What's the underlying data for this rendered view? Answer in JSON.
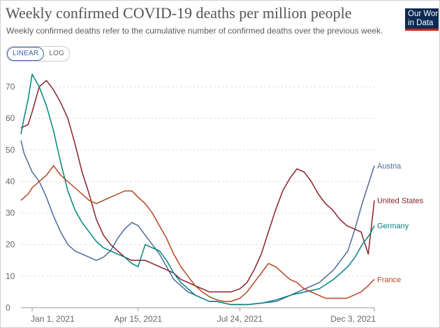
{
  "header": {
    "title": "Weekly confirmed COVID-19 deaths per million people",
    "subtitle": "Weekly confirmed deaths refer to the cumulative number of confirmed deaths over the previous week.",
    "logo_line1": "Our World",
    "logo_line2": "in Data"
  },
  "controls": {
    "linear_label": "LINEAR",
    "log_label": "LOG"
  },
  "colors": {
    "Austria": "#4c6a9c",
    "United States": "#8a2128",
    "Germany": "#00847e",
    "France": "#b5441e"
  },
  "chart_data": {
    "type": "line",
    "title": "Weekly confirmed COVID-19 deaths per million people",
    "xlabel": "",
    "ylabel": "",
    "x_range": [
      "Dec 21, 2020",
      "Dec 3, 2021"
    ],
    "ylim": [
      0,
      78
    ],
    "yticks": [
      0,
      10,
      20,
      30,
      40,
      50,
      60,
      70
    ],
    "xticks": [
      {
        "label": "Jan 1, 2021",
        "date": "2021-01-01"
      },
      {
        "label": "Apr 15, 2021",
        "date": "2021-04-15"
      },
      {
        "label": "Jul 24, 2021",
        "date": "2021-07-24"
      },
      {
        "label": "Dec 3, 2021",
        "date": "2021-12-03"
      }
    ],
    "grid": true,
    "series": [
      {
        "name": "Austria",
        "points": [
          [
            "2020-12-21",
            53
          ],
          [
            "2020-12-24",
            49
          ],
          [
            "2020-12-28",
            46
          ],
          [
            "2021-01-01",
            43
          ],
          [
            "2021-01-08",
            40
          ],
          [
            "2021-01-15",
            35
          ],
          [
            "2021-01-22",
            29
          ],
          [
            "2021-01-29",
            24
          ],
          [
            "2021-02-05",
            20
          ],
          [
            "2021-02-12",
            18
          ],
          [
            "2021-02-19",
            17
          ],
          [
            "2021-02-26",
            16
          ],
          [
            "2021-03-05",
            15
          ],
          [
            "2021-03-12",
            16
          ],
          [
            "2021-03-19",
            18
          ],
          [
            "2021-03-26",
            22
          ],
          [
            "2021-04-02",
            25
          ],
          [
            "2021-04-09",
            27
          ],
          [
            "2021-04-15",
            26
          ],
          [
            "2021-04-22",
            23
          ],
          [
            "2021-04-29",
            20
          ],
          [
            "2021-05-06",
            17
          ],
          [
            "2021-05-13",
            13
          ],
          [
            "2021-05-20",
            9
          ],
          [
            "2021-05-27",
            7
          ],
          [
            "2021-06-03",
            5
          ],
          [
            "2021-06-10",
            4
          ],
          [
            "2021-06-17",
            3
          ],
          [
            "2021-06-24",
            2
          ],
          [
            "2021-07-01",
            2
          ],
          [
            "2021-07-08",
            1.5
          ],
          [
            "2021-07-15",
            1
          ],
          [
            "2021-07-24",
            1
          ],
          [
            "2021-08-01",
            1
          ],
          [
            "2021-08-15",
            1.5
          ],
          [
            "2021-08-29",
            2
          ],
          [
            "2021-09-12",
            4
          ],
          [
            "2021-09-26",
            6
          ],
          [
            "2021-10-10",
            8
          ],
          [
            "2021-10-24",
            12
          ],
          [
            "2021-11-07",
            18
          ],
          [
            "2021-11-14",
            25
          ],
          [
            "2021-11-21",
            33
          ],
          [
            "2021-11-28",
            40
          ],
          [
            "2021-12-03",
            45
          ]
        ]
      },
      {
        "name": "United States",
        "points": [
          [
            "2020-12-21",
            57
          ],
          [
            "2020-12-28",
            58
          ],
          [
            "2021-01-01",
            62
          ],
          [
            "2021-01-08",
            70
          ],
          [
            "2021-01-15",
            72
          ],
          [
            "2021-01-22",
            69
          ],
          [
            "2021-01-29",
            65
          ],
          [
            "2021-02-05",
            60
          ],
          [
            "2021-02-12",
            52
          ],
          [
            "2021-02-19",
            43
          ],
          [
            "2021-02-26",
            36
          ],
          [
            "2021-03-05",
            28
          ],
          [
            "2021-03-12",
            23
          ],
          [
            "2021-03-19",
            20
          ],
          [
            "2021-03-26",
            18
          ],
          [
            "2021-04-02",
            16
          ],
          [
            "2021-04-09",
            15
          ],
          [
            "2021-04-15",
            15
          ],
          [
            "2021-04-22",
            15
          ],
          [
            "2021-04-29",
            14
          ],
          [
            "2021-05-06",
            13
          ],
          [
            "2021-05-13",
            12
          ],
          [
            "2021-05-20",
            11
          ],
          [
            "2021-05-27",
            9
          ],
          [
            "2021-06-03",
            8
          ],
          [
            "2021-06-10",
            7
          ],
          [
            "2021-06-17",
            6
          ],
          [
            "2021-06-24",
            5
          ],
          [
            "2021-07-01",
            5
          ],
          [
            "2021-07-08",
            5
          ],
          [
            "2021-07-15",
            5
          ],
          [
            "2021-07-24",
            6
          ],
          [
            "2021-07-31",
            8
          ],
          [
            "2021-08-07",
            12
          ],
          [
            "2021-08-14",
            17
          ],
          [
            "2021-08-21",
            24
          ],
          [
            "2021-08-28",
            31
          ],
          [
            "2021-09-04",
            37
          ],
          [
            "2021-09-11",
            41
          ],
          [
            "2021-09-18",
            44
          ],
          [
            "2021-09-25",
            43
          ],
          [
            "2021-10-02",
            40
          ],
          [
            "2021-10-09",
            36
          ],
          [
            "2021-10-16",
            33
          ],
          [
            "2021-10-23",
            31
          ],
          [
            "2021-10-30",
            28
          ],
          [
            "2021-11-06",
            26
          ],
          [
            "2021-11-13",
            25
          ],
          [
            "2021-11-20",
            24
          ],
          [
            "2021-11-27",
            17
          ],
          [
            "2021-12-03",
            34
          ]
        ]
      },
      {
        "name": "Germany",
        "points": [
          [
            "2020-12-21",
            55
          ],
          [
            "2020-12-24",
            60
          ],
          [
            "2020-12-28",
            66
          ],
          [
            "2021-01-01",
            74
          ],
          [
            "2021-01-08",
            70
          ],
          [
            "2021-01-15",
            64
          ],
          [
            "2021-01-22",
            56
          ],
          [
            "2021-01-29",
            46
          ],
          [
            "2021-02-05",
            37
          ],
          [
            "2021-02-12",
            31
          ],
          [
            "2021-02-19",
            27
          ],
          [
            "2021-02-26",
            24
          ],
          [
            "2021-03-05",
            21
          ],
          [
            "2021-03-12",
            19
          ],
          [
            "2021-03-19",
            18
          ],
          [
            "2021-03-26",
            17
          ],
          [
            "2021-04-02",
            16
          ],
          [
            "2021-04-09",
            14
          ],
          [
            "2021-04-15",
            13
          ],
          [
            "2021-04-22",
            20
          ],
          [
            "2021-04-29",
            19
          ],
          [
            "2021-05-06",
            18
          ],
          [
            "2021-05-13",
            15
          ],
          [
            "2021-05-20",
            11
          ],
          [
            "2021-05-27",
            8
          ],
          [
            "2021-06-03",
            6
          ],
          [
            "2021-06-10",
            4
          ],
          [
            "2021-06-17",
            3
          ],
          [
            "2021-06-24",
            2
          ],
          [
            "2021-07-01",
            2
          ],
          [
            "2021-07-08",
            1.5
          ],
          [
            "2021-07-15",
            1
          ],
          [
            "2021-07-24",
            1
          ],
          [
            "2021-08-01",
            1
          ],
          [
            "2021-08-15",
            1.5
          ],
          [
            "2021-08-29",
            2.5
          ],
          [
            "2021-09-12",
            4
          ],
          [
            "2021-09-26",
            5
          ],
          [
            "2021-10-10",
            6
          ],
          [
            "2021-10-24",
            9
          ],
          [
            "2021-11-07",
            13
          ],
          [
            "2021-11-14",
            16
          ],
          [
            "2021-11-21",
            20
          ],
          [
            "2021-11-28",
            23
          ],
          [
            "2021-12-03",
            26
          ]
        ]
      },
      {
        "name": "France",
        "points": [
          [
            "2020-12-21",
            34
          ],
          [
            "2020-12-28",
            36
          ],
          [
            "2021-01-01",
            38
          ],
          [
            "2021-01-08",
            40
          ],
          [
            "2021-01-15",
            42
          ],
          [
            "2021-01-22",
            45
          ],
          [
            "2021-01-29",
            42
          ],
          [
            "2021-02-05",
            40
          ],
          [
            "2021-02-12",
            38
          ],
          [
            "2021-02-19",
            36
          ],
          [
            "2021-02-26",
            34
          ],
          [
            "2021-03-05",
            33
          ],
          [
            "2021-03-12",
            34
          ],
          [
            "2021-03-19",
            35
          ],
          [
            "2021-03-26",
            36
          ],
          [
            "2021-04-02",
            37
          ],
          [
            "2021-04-09",
            37
          ],
          [
            "2021-04-15",
            35
          ],
          [
            "2021-04-22",
            33
          ],
          [
            "2021-04-29",
            30
          ],
          [
            "2021-05-06",
            26
          ],
          [
            "2021-05-13",
            22
          ],
          [
            "2021-05-20",
            17
          ],
          [
            "2021-05-27",
            13
          ],
          [
            "2021-06-03",
            10
          ],
          [
            "2021-06-10",
            7
          ],
          [
            "2021-06-17",
            5
          ],
          [
            "2021-06-24",
            3.5
          ],
          [
            "2021-07-01",
            2.5
          ],
          [
            "2021-07-08",
            2
          ],
          [
            "2021-07-15",
            2
          ],
          [
            "2021-07-24",
            3
          ],
          [
            "2021-07-31",
            5
          ],
          [
            "2021-08-07",
            8
          ],
          [
            "2021-08-14",
            11
          ],
          [
            "2021-08-21",
            14
          ],
          [
            "2021-08-28",
            13
          ],
          [
            "2021-09-04",
            11
          ],
          [
            "2021-09-11",
            9
          ],
          [
            "2021-09-18",
            8
          ],
          [
            "2021-09-25",
            6
          ],
          [
            "2021-10-02",
            5
          ],
          [
            "2021-10-09",
            4
          ],
          [
            "2021-10-16",
            3
          ],
          [
            "2021-10-23",
            3
          ],
          [
            "2021-10-30",
            3
          ],
          [
            "2021-11-06",
            3
          ],
          [
            "2021-11-13",
            4
          ],
          [
            "2021-11-20",
            5
          ],
          [
            "2021-11-27",
            7
          ],
          [
            "2021-12-03",
            9
          ]
        ]
      }
    ]
  }
}
